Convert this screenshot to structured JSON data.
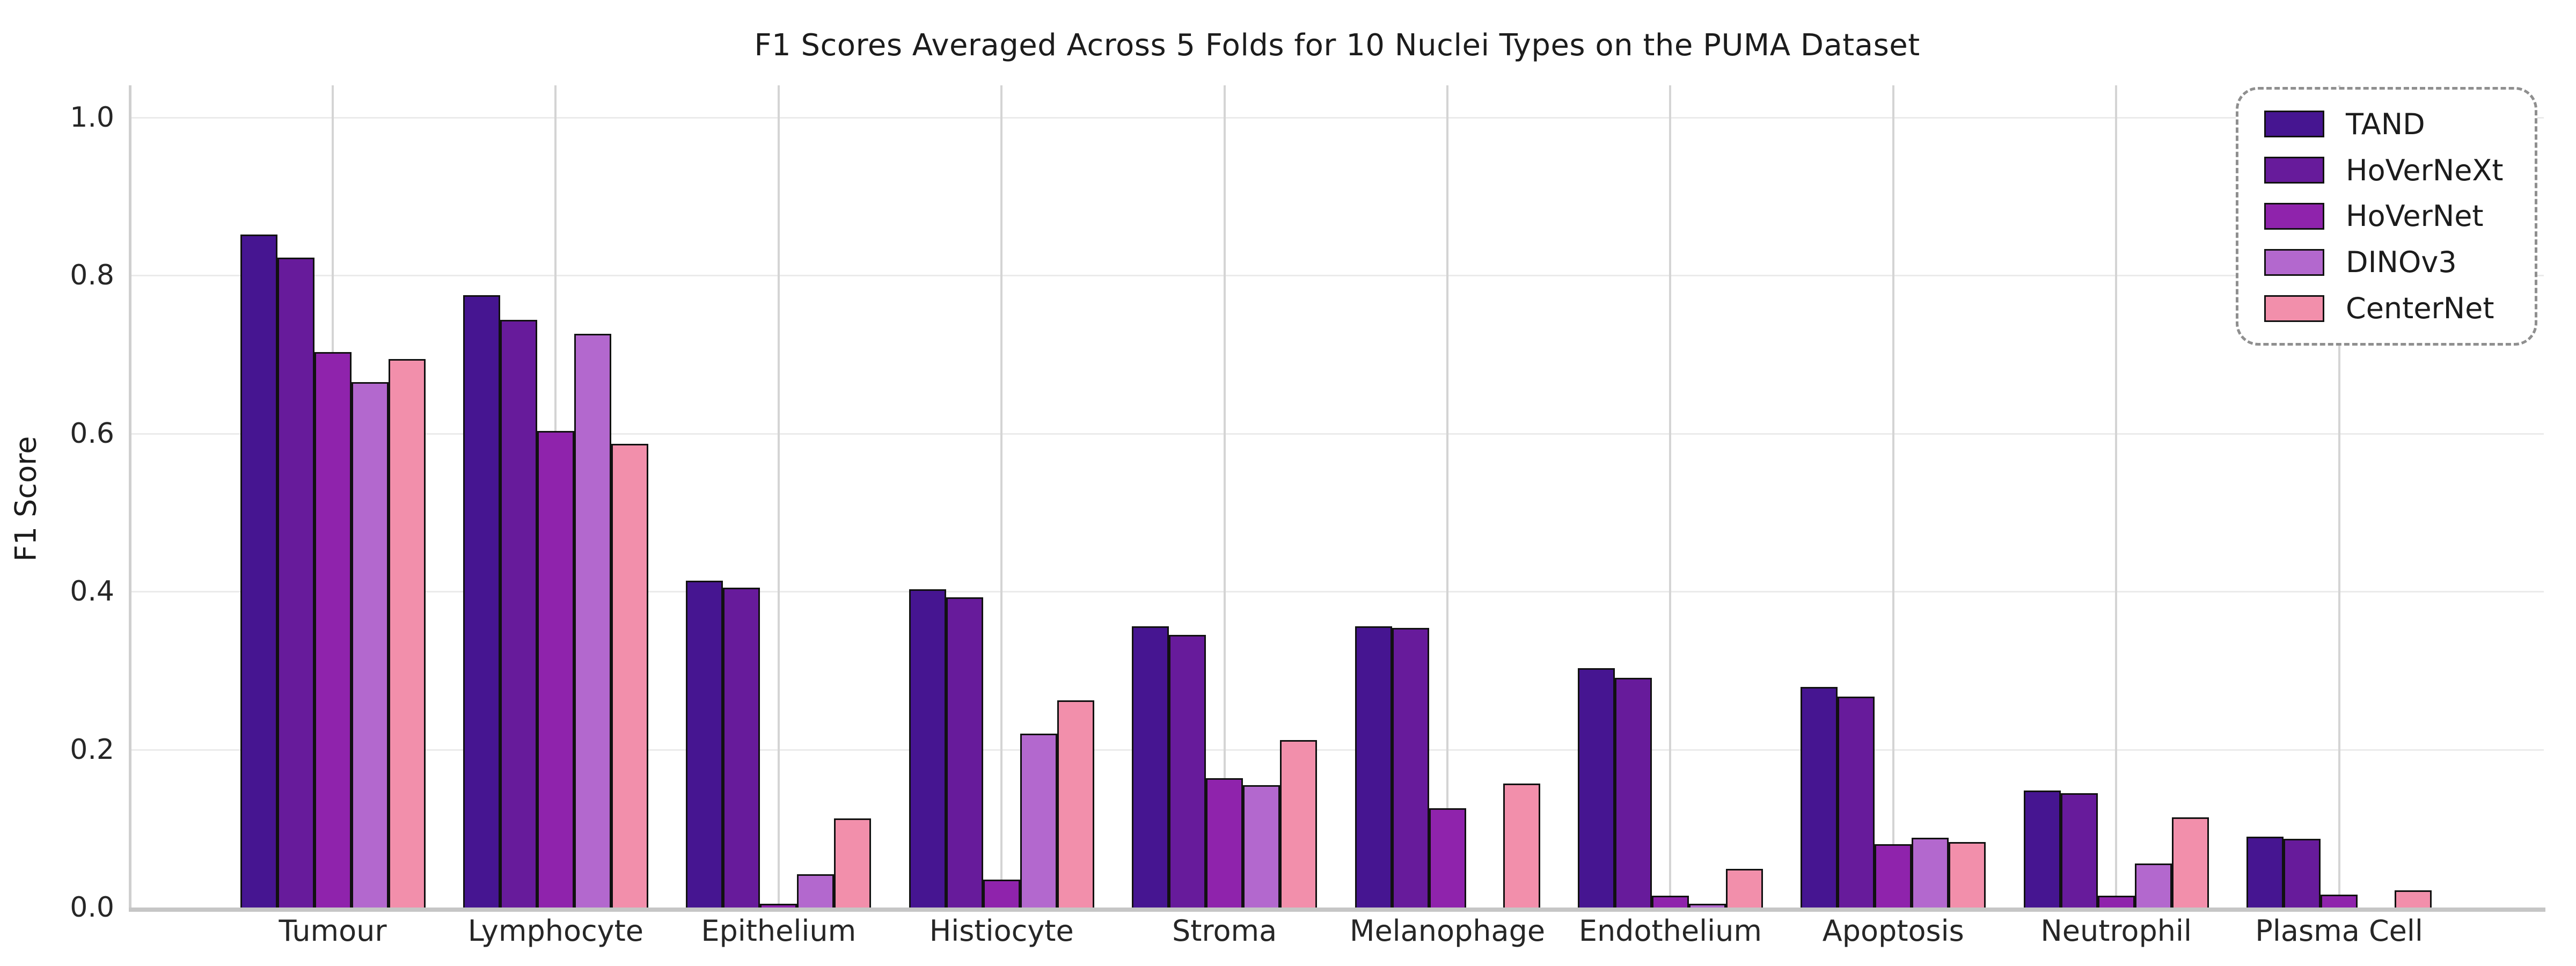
{
  "chart_data": {
    "type": "bar",
    "title": "F1 Scores Averaged Across 5 Folds for 10 Nuclei Types on the PUMA Dataset",
    "xlabel": "",
    "ylabel": "F1 Score",
    "ylim": [
      0.0,
      1.02
    ],
    "yticks": [
      "0.0",
      "0.2",
      "0.4",
      "0.6",
      "0.8",
      "1.0"
    ],
    "grid": true,
    "legend_position": "upper right",
    "categories": [
      "Tumour",
      "Lymphocyte",
      "Epithelium",
      "Histiocyte",
      "Stroma",
      "Melanophage",
      "Endothelium",
      "Apoptosis",
      "Neutrophil",
      "Plasma Cell"
    ],
    "series": [
      {
        "name": "TAND",
        "color": "#461591",
        "values": [
          0.852,
          0.775,
          0.414,
          0.403,
          0.356,
          0.356,
          0.303,
          0.279,
          0.148,
          0.09
        ]
      },
      {
        "name": "HoVerNeXt",
        "color": "#671B9B",
        "values": [
          0.823,
          0.744,
          0.405,
          0.393,
          0.345,
          0.354,
          0.291,
          0.267,
          0.145,
          0.087
        ]
      },
      {
        "name": "HoVerNet",
        "color": "#8F23AC",
        "values": [
          0.703,
          0.603,
          0.005,
          0.035,
          0.164,
          0.126,
          0.015,
          0.08,
          0.015,
          0.016
        ]
      },
      {
        "name": "DINOv3",
        "color": "#B368CE",
        "values": [
          0.665,
          0.726,
          0.042,
          0.22,
          0.155,
          0.0,
          0.005,
          0.088,
          0.056,
          0.0
        ]
      },
      {
        "name": "CenterNet",
        "color": "#F28FAB",
        "values": [
          0.694,
          0.587,
          0.113,
          0.262,
          0.212,
          0.157,
          0.049,
          0.083,
          0.114,
          0.022
        ]
      }
    ],
    "colors": {
      "bar_edge": "#111111",
      "h_gridline": "#ebebeb",
      "v_gridline": "#d4d4d4",
      "left_spine": "#cfcfcf",
      "bottom_axis": "#c6c6c6",
      "tick_text": "#262626",
      "title_text": "#1c1c1c"
    }
  }
}
